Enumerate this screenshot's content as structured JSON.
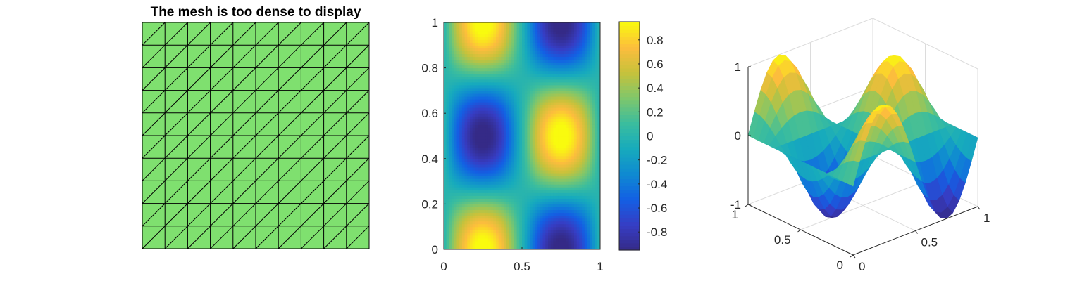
{
  "chart_data": [
    {
      "type": "mesh",
      "title": "The mesh is too dense to display",
      "grid_divisions": 10,
      "triangle_diagonal": "bottom-left to top-right",
      "face_color": "#7fe06f",
      "edge_color": "#000000"
    },
    {
      "type": "heatmap",
      "function": "sin(2*pi*x)*cos(2*pi*y)",
      "xlim": [
        0,
        1
      ],
      "ylim": [
        0,
        1
      ],
      "xticks": [
        "0",
        "0.5",
        "1"
      ],
      "yticks": [
        "0",
        "0.2",
        "0.4",
        "0.6",
        "0.8",
        "1"
      ],
      "colorbar": {
        "clim": [
          -0.951,
          0.951
        ],
        "ticks": [
          -0.8,
          -0.6,
          -0.4,
          -0.2,
          0,
          0.2,
          0.4,
          0.6,
          0.8
        ],
        "tick_labels": [
          "-0.8",
          "-0.6",
          "-0.4",
          "-0.2",
          "0",
          "0.2",
          "0.4",
          "0.6",
          "0.8"
        ]
      },
      "colormap": "parula"
    },
    {
      "type": "surface",
      "function": "sin(2*pi*x)*cos(2*pi*y)",
      "grid_divisions": 10,
      "xlim": [
        0,
        1
      ],
      "ylim": [
        0,
        1
      ],
      "zlim": [
        -1,
        1
      ],
      "xticks": [
        "0",
        "0.5",
        "1"
      ],
      "yticks": [
        "0",
        "0.5",
        "1"
      ],
      "zticks": [
        "-1",
        "0",
        "1"
      ],
      "box": true,
      "grid": true,
      "colormap": "parula"
    }
  ]
}
